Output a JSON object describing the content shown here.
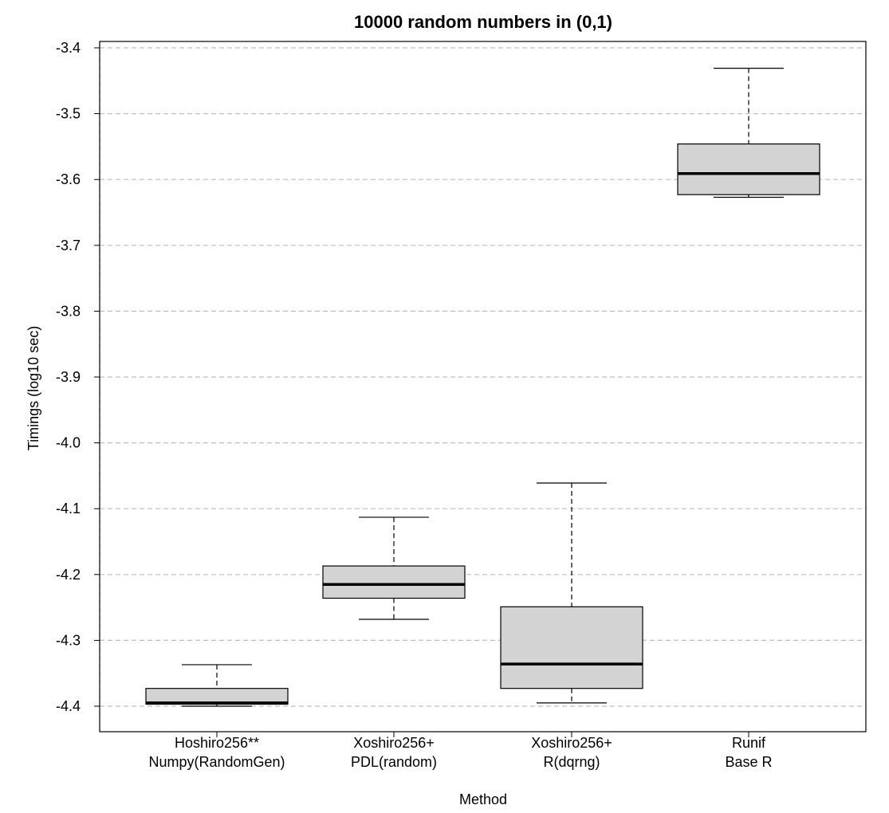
{
  "chart_data": {
    "type": "box",
    "title": "10000 random numbers in (0,1)",
    "xlabel": "Method",
    "ylabel": "Timings (log10 sec)",
    "ylim": [
      -4.44,
      -3.39
    ],
    "yticks": [
      -3.4,
      -3.5,
      -3.6,
      -3.7,
      -3.8,
      -3.9,
      -4.0,
      -4.1,
      -4.2,
      -4.3,
      -4.4
    ],
    "ytick_labels": [
      "-3.4",
      "-3.5",
      "-3.6",
      "-3.7",
      "-3.8",
      "-3.9",
      "-4.0",
      "-4.1",
      "-4.2",
      "-4.3",
      "-4.4"
    ],
    "grid": true,
    "categories": [
      {
        "line1": "Hoshiro256**",
        "line2": "Numpy(RandomGen)"
      },
      {
        "line1": "Xoshiro256+",
        "line2": "PDL(random)"
      },
      {
        "line1": "Xoshiro256+",
        "line2": "R(dqrng)"
      },
      {
        "line1": "Runif",
        "line2": "Base R"
      }
    ],
    "boxes": [
      {
        "min": -4.4,
        "q1": -4.397,
        "median": -4.395,
        "q3": -4.373,
        "max": -4.337
      },
      {
        "min": -4.268,
        "q1": -4.236,
        "median": -4.215,
        "q3": -4.187,
        "max": -4.113
      },
      {
        "min": -4.395,
        "q1": -4.373,
        "median": -4.336,
        "q3": -4.249,
        "max": -4.061
      },
      {
        "min": -3.627,
        "q1": -3.623,
        "median": -3.591,
        "q3": -3.546,
        "max": -3.431
      }
    ],
    "colors": {
      "box_fill": "#d3d3d3",
      "grid": "#bfbfbf",
      "stroke": "#000000"
    }
  }
}
